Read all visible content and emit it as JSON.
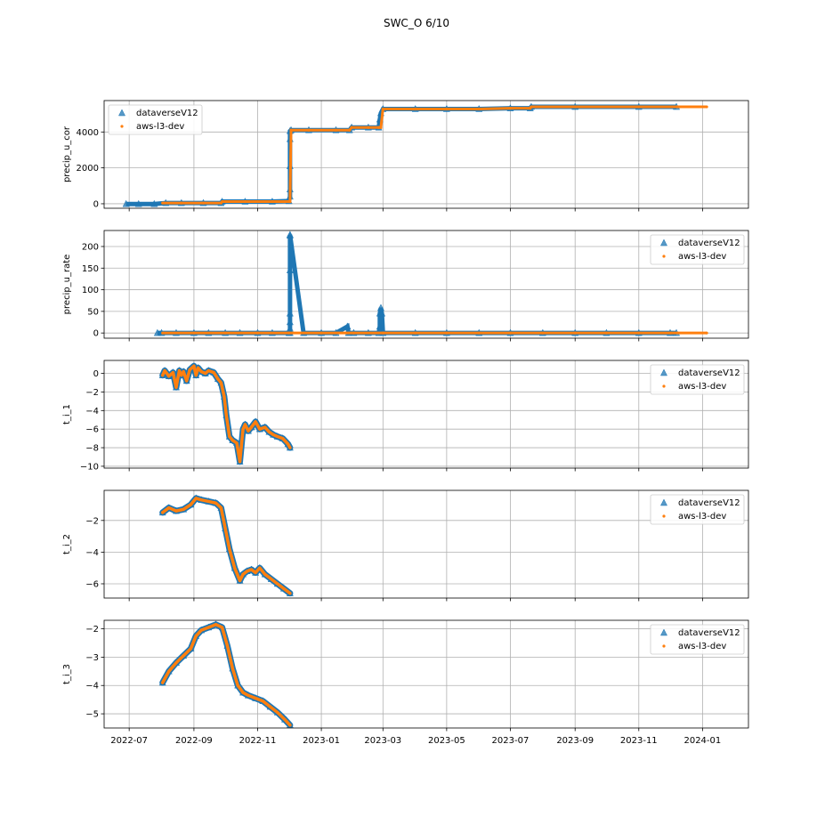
{
  "figure": {
    "title": "SWC_O 6/10"
  },
  "colors": {
    "series1": "#1f77b4",
    "series2": "#ff7f0e",
    "grid": "#b0b0b0"
  },
  "chart_data": [
    {
      "type": "scatter",
      "ylabel": "precip_u_cor",
      "legend": "top-left",
      "grid": true,
      "yticks": [
        0,
        2000,
        4000
      ],
      "ylim": [
        -250,
        5750
      ],
      "series": [
        {
          "name": "dataverseV12",
          "marker": "triangle",
          "x": [
            "2022-06-28",
            "2022-07-10",
            "2022-07-25",
            "2022-08-05",
            "2022-08-20",
            "2022-09-10",
            "2022-09-27",
            "2022-09-28",
            "2022-10-20",
            "2022-11-15",
            "2022-12-01",
            "2022-12-02",
            "2022-12-02",
            "2022-12-02",
            "2022-12-02",
            "2022-12-02",
            "2022-12-03",
            "2022-12-20",
            "2023-01-15",
            "2023-01-28",
            "2023-01-30",
            "2023-02-15",
            "2023-02-25",
            "2023-02-26",
            "2023-02-27",
            "2023-03-01",
            "2023-04-01",
            "2023-05-01",
            "2023-06-01",
            "2023-07-01",
            "2023-07-20",
            "2023-07-21",
            "2023-09-01",
            "2023-11-01",
            "2023-12-07"
          ],
          "y": [
            -15,
            -15,
            -15,
            40,
            40,
            40,
            40,
            120,
            120,
            120,
            150,
            400,
            800,
            2100,
            3600,
            4050,
            4100,
            4100,
            4100,
            4100,
            4250,
            4250,
            4250,
            4700,
            5050,
            5280,
            5280,
            5280,
            5280,
            5320,
            5320,
            5400,
            5400,
            5400,
            5400
          ]
        },
        {
          "name": "aws-l3-dev",
          "marker": "dot",
          "x": [
            "2022-08-02",
            "2022-08-20",
            "2022-09-10",
            "2022-09-27",
            "2022-09-28",
            "2022-10-20",
            "2022-11-15",
            "2022-12-02",
            "2022-12-03",
            "2022-12-20",
            "2023-01-15",
            "2023-01-28",
            "2023-01-30",
            "2023-02-15",
            "2023-02-25",
            "2023-02-27",
            "2023-03-01",
            "2023-04-01",
            "2023-05-01",
            "2023-06-01",
            "2023-07-01",
            "2023-07-20",
            "2023-07-21",
            "2023-09-01",
            "2023-11-01",
            "2023-12-07",
            "2024-01-05"
          ],
          "y": [
            40,
            40,
            40,
            40,
            120,
            120,
            120,
            120,
            4100,
            4100,
            4100,
            4100,
            4250,
            4250,
            4250,
            4250,
            5280,
            5280,
            5280,
            5280,
            5320,
            5320,
            5400,
            5400,
            5400,
            5400,
            5400
          ]
        }
      ]
    },
    {
      "type": "scatter",
      "ylabel": "precip_u_rate",
      "legend": "top-right",
      "grid": true,
      "yticks": [
        0,
        50,
        100,
        150,
        200
      ],
      "ylim": [
        -12,
        237
      ],
      "series": [
        {
          "name": "dataverseV12",
          "marker": "triangle",
          "x": [
            "2022-07-28",
            "2022-08-01",
            "2022-08-15",
            "2022-09-01",
            "2022-09-15",
            "2022-10-01",
            "2022-10-15",
            "2022-11-01",
            "2022-11-15",
            "2022-12-01",
            "2022-12-02",
            "2022-12-02",
            "2022-12-02",
            "2022-12-02",
            "2022-12-02",
            "2022-12-02",
            "2022-12-02",
            "2022-12-15",
            "2023-01-01",
            "2023-01-15",
            "2023-01-26",
            "2023-01-27",
            "2023-02-01",
            "2023-02-15",
            "2023-02-25",
            "2023-02-26",
            "2023-02-26",
            "2023-02-27",
            "2023-02-28",
            "2023-03-01",
            "2023-04-01",
            "2023-05-01",
            "2023-06-01",
            "2023-07-01",
            "2023-08-01",
            "2023-09-01",
            "2023-10-01",
            "2023-11-01",
            "2023-12-01",
            "2023-12-07"
          ],
          "y": [
            0,
            0,
            0,
            0,
            0,
            0,
            0,
            0,
            0,
            0,
            0,
            10,
            25,
            45,
            145,
            225,
            227,
            0,
            0,
            0,
            15,
            0,
            0,
            0,
            0,
            15,
            45,
            58,
            45,
            0,
            0,
            0,
            0,
            0,
            0,
            0,
            0,
            0,
            0,
            0
          ]
        },
        {
          "name": "aws-l3-dev",
          "marker": "dot",
          "x": [
            "2022-08-02",
            "2022-09-01",
            "2022-10-01",
            "2022-11-01",
            "2022-12-01",
            "2023-01-01",
            "2023-02-01",
            "2023-03-01",
            "2023-04-01",
            "2023-05-01",
            "2023-06-01",
            "2023-07-01",
            "2023-08-01",
            "2023-09-01",
            "2023-10-01",
            "2023-11-01",
            "2023-12-01",
            "2024-01-05"
          ],
          "y": [
            0,
            0,
            0,
            0,
            0,
            0,
            0,
            0,
            0,
            0,
            0,
            0,
            0,
            0,
            0,
            0,
            0,
            0
          ]
        }
      ]
    },
    {
      "type": "line",
      "ylabel": "t_i_1",
      "legend": "top-right",
      "grid": true,
      "yticks": [
        -10,
        -8,
        -6,
        -4,
        -2,
        0
      ],
      "ylim": [
        -10.2,
        1.4
      ],
      "series": [
        {
          "name": "dataverseV12",
          "marker": "triangle",
          "x": [
            "2022-08-02",
            "2022-08-04",
            "2022-08-08",
            "2022-08-12",
            "2022-08-15",
            "2022-08-18",
            "2022-08-20",
            "2022-08-22",
            "2022-08-25",
            "2022-08-28",
            "2022-09-01",
            "2022-09-03",
            "2022-09-05",
            "2022-09-08",
            "2022-09-12",
            "2022-09-15",
            "2022-09-20",
            "2022-09-24",
            "2022-09-27",
            "2022-09-30",
            "2022-10-02",
            "2022-10-05",
            "2022-10-08",
            "2022-10-12",
            "2022-10-15",
            "2022-10-18",
            "2022-10-20",
            "2022-10-23",
            "2022-10-26",
            "2022-10-30",
            "2022-11-03",
            "2022-11-08",
            "2022-11-12",
            "2022-11-16",
            "2022-11-20",
            "2022-11-25",
            "2022-11-30",
            "2022-12-02"
          ],
          "y": [
            -0.2,
            0.3,
            -0.3,
            0.1,
            -1.5,
            0.3,
            -0.2,
            0.2,
            -0.8,
            0.4,
            0.8,
            -0.2,
            0.6,
            0.2,
            0.0,
            0.3,
            0.1,
            -0.6,
            -1.0,
            -2.5,
            -4.5,
            -6.8,
            -7.2,
            -7.5,
            -9.5,
            -6.0,
            -5.5,
            -6.2,
            -5.8,
            -5.2,
            -6.0,
            -5.8,
            -6.3,
            -6.6,
            -6.8,
            -7.0,
            -7.6,
            -8.0
          ]
        },
        {
          "name": "aws-l3-dev",
          "marker": "dot",
          "x": [
            "2022-08-02",
            "2022-08-04",
            "2022-08-08",
            "2022-08-12",
            "2022-08-15",
            "2022-08-18",
            "2022-08-20",
            "2022-08-22",
            "2022-08-25",
            "2022-08-28",
            "2022-09-01",
            "2022-09-03",
            "2022-09-05",
            "2022-09-08",
            "2022-09-12",
            "2022-09-15",
            "2022-09-20",
            "2022-09-24",
            "2022-09-27",
            "2022-09-30",
            "2022-10-02",
            "2022-10-05",
            "2022-10-08",
            "2022-10-12",
            "2022-10-15",
            "2022-10-18",
            "2022-10-20",
            "2022-10-23",
            "2022-10-26",
            "2022-10-30",
            "2022-11-03",
            "2022-11-08",
            "2022-11-12",
            "2022-11-16",
            "2022-11-20",
            "2022-11-25",
            "2022-11-30",
            "2022-12-02"
          ],
          "y": [
            -0.2,
            0.3,
            -0.3,
            0.1,
            -1.5,
            0.3,
            -0.2,
            0.2,
            -0.8,
            0.4,
            0.8,
            -0.2,
            0.6,
            0.2,
            0.0,
            0.3,
            0.1,
            -0.6,
            -1.0,
            -2.5,
            -4.5,
            -6.8,
            -7.2,
            -7.5,
            -9.5,
            -6.0,
            -5.5,
            -6.2,
            -5.8,
            -5.2,
            -6.0,
            -5.8,
            -6.3,
            -6.6,
            -6.8,
            -7.0,
            -7.6,
            -8.0
          ]
        }
      ]
    },
    {
      "type": "line",
      "ylabel": "t_i_2",
      "legend": "top-right",
      "grid": true,
      "yticks": [
        -6,
        -4,
        -2
      ],
      "ylim": [
        -6.9,
        -0.1
      ],
      "series": [
        {
          "name": "dataverseV12",
          "marker": "triangle",
          "x": [
            "2022-08-02",
            "2022-08-08",
            "2022-08-15",
            "2022-08-22",
            "2022-08-29",
            "2022-09-03",
            "2022-09-08",
            "2022-09-15",
            "2022-09-22",
            "2022-09-27",
            "2022-10-01",
            "2022-10-05",
            "2022-10-10",
            "2022-10-15",
            "2022-10-18",
            "2022-10-22",
            "2022-10-26",
            "2022-10-30",
            "2022-11-03",
            "2022-11-08",
            "2022-11-14",
            "2022-11-20",
            "2022-11-26",
            "2022-12-02"
          ],
          "y": [
            -1.5,
            -1.2,
            -1.4,
            -1.3,
            -1.0,
            -0.6,
            -0.7,
            -0.8,
            -0.9,
            -1.2,
            -2.5,
            -3.8,
            -5.0,
            -5.8,
            -5.4,
            -5.2,
            -5.1,
            -5.3,
            -5.0,
            -5.4,
            -5.7,
            -6.0,
            -6.3,
            -6.6
          ]
        },
        {
          "name": "aws-l3-dev",
          "marker": "dot",
          "x": [
            "2022-08-02",
            "2022-08-08",
            "2022-08-15",
            "2022-08-22",
            "2022-08-29",
            "2022-09-03",
            "2022-09-08",
            "2022-09-15",
            "2022-09-22",
            "2022-09-27",
            "2022-10-01",
            "2022-10-05",
            "2022-10-10",
            "2022-10-15",
            "2022-10-18",
            "2022-10-22",
            "2022-10-26",
            "2022-10-30",
            "2022-11-03",
            "2022-11-08",
            "2022-11-14",
            "2022-11-20",
            "2022-11-26",
            "2022-12-02"
          ],
          "y": [
            -1.5,
            -1.2,
            -1.4,
            -1.3,
            -1.0,
            -0.6,
            -0.7,
            -0.8,
            -0.9,
            -1.2,
            -2.5,
            -3.8,
            -5.0,
            -5.8,
            -5.4,
            -5.2,
            -5.1,
            -5.3,
            -5.0,
            -5.4,
            -5.7,
            -6.0,
            -6.3,
            -6.6
          ]
        }
      ]
    },
    {
      "type": "line",
      "ylabel": "t_i_3",
      "legend": "top-right",
      "grid": true,
      "yticks": [
        -5,
        -4,
        -3,
        -2
      ],
      "ylim": [
        -5.5,
        -1.7
      ],
      "series": [
        {
          "name": "dataverseV12",
          "marker": "triangle",
          "x": [
            "2022-08-02",
            "2022-08-08",
            "2022-08-15",
            "2022-08-22",
            "2022-08-29",
            "2022-09-03",
            "2022-09-08",
            "2022-09-15",
            "2022-09-22",
            "2022-09-28",
            "2022-10-03",
            "2022-10-08",
            "2022-10-13",
            "2022-10-18",
            "2022-10-23",
            "2022-10-30",
            "2022-11-06",
            "2022-11-13",
            "2022-11-20",
            "2022-11-27",
            "2022-12-02"
          ],
          "y": [
            -3.9,
            -3.5,
            -3.2,
            -2.95,
            -2.7,
            -2.25,
            -2.05,
            -1.95,
            -1.85,
            -1.95,
            -2.6,
            -3.4,
            -4.0,
            -4.25,
            -4.35,
            -4.45,
            -4.55,
            -4.75,
            -4.95,
            -5.2,
            -5.4
          ]
        },
        {
          "name": "aws-l3-dev",
          "marker": "dot",
          "x": [
            "2022-08-02",
            "2022-08-08",
            "2022-08-15",
            "2022-08-22",
            "2022-08-29",
            "2022-09-03",
            "2022-09-08",
            "2022-09-15",
            "2022-09-22",
            "2022-09-28",
            "2022-10-03",
            "2022-10-08",
            "2022-10-13",
            "2022-10-18",
            "2022-10-23",
            "2022-10-30",
            "2022-11-06",
            "2022-11-13",
            "2022-11-20",
            "2022-11-27",
            "2022-12-02"
          ],
          "y": [
            -3.9,
            -3.5,
            -3.2,
            -2.95,
            -2.7,
            -2.25,
            -2.05,
            -1.95,
            -1.85,
            -1.95,
            -2.6,
            -3.4,
            -4.0,
            -4.25,
            -4.35,
            -4.45,
            -4.55,
            -4.75,
            -4.95,
            -5.2,
            -5.4
          ]
        }
      ]
    }
  ],
  "xaxis": {
    "range": [
      "2022-06-07",
      "2024-02-14"
    ],
    "ticks": [
      "2022-07",
      "2022-09",
      "2022-11",
      "2023-01",
      "2023-03",
      "2023-05",
      "2023-07",
      "2023-09",
      "2023-11",
      "2024-01"
    ]
  }
}
